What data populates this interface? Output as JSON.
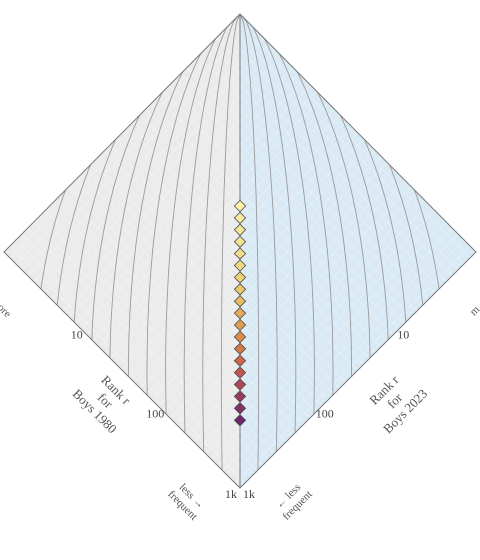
{
  "chart_data": {
    "type": "scatter",
    "title": "",
    "scale": "log",
    "range": [
      1,
      1000
    ],
    "left_axis": {
      "label_lines": [
        "Rank r",
        "for",
        "Boys 1980"
      ],
      "direction_less": [
        "less →",
        "frequent"
      ],
      "direction_more_partial": "ore"
    },
    "right_axis": {
      "label_lines": [
        "Rank r",
        "for",
        "Boys 2023"
      ],
      "direction_less": [
        "← less",
        "frequent"
      ],
      "direction_more_partial": "m"
    },
    "ticks": [
      {
        "value": 10,
        "label": "10"
      },
      {
        "value": 100,
        "label": "100"
      },
      {
        "value": 1000,
        "label": "1k"
      }
    ],
    "colors": {
      "left_half": "#ebebeb",
      "right_half": "#d9eaf5",
      "frame": "#777777",
      "contour": "#9a9a9a",
      "point_stroke": "#4a4a4a"
    },
    "points": [
      {
        "r1": 1,
        "r2": 1,
        "level": 0.0
      },
      {
        "r1": 2,
        "r2": 2,
        "level": 0.05
      },
      {
        "r1": 3,
        "r2": 3,
        "level": 0.1
      },
      {
        "r1": 4,
        "r2": 4,
        "level": 0.15
      },
      {
        "r1": 5,
        "r2": 5,
        "level": 0.2
      },
      {
        "r1": 7,
        "r2": 7,
        "level": 0.25
      },
      {
        "r1": 9,
        "r2": 9,
        "level": 0.3
      },
      {
        "r1": 12,
        "r2": 12,
        "level": 0.36
      },
      {
        "r1": 15,
        "r2": 15,
        "level": 0.42
      },
      {
        "r1": 20,
        "r2": 20,
        "level": 0.48
      },
      {
        "r1": 26,
        "r2": 26,
        "level": 0.54
      },
      {
        "r1": 34,
        "r2": 34,
        "level": 0.6
      },
      {
        "r1": 45,
        "r2": 45,
        "level": 0.66
      },
      {
        "r1": 60,
        "r2": 60,
        "level": 0.72
      },
      {
        "r1": 80,
        "r2": 80,
        "level": 0.78
      },
      {
        "r1": 105,
        "r2": 105,
        "level": 0.84
      },
      {
        "r1": 140,
        "r2": 140,
        "level": 0.9
      },
      {
        "r1": 185,
        "r2": 185,
        "level": 0.95
      },
      {
        "r1": 250,
        "r2": 250,
        "level": 1.0
      }
    ]
  }
}
